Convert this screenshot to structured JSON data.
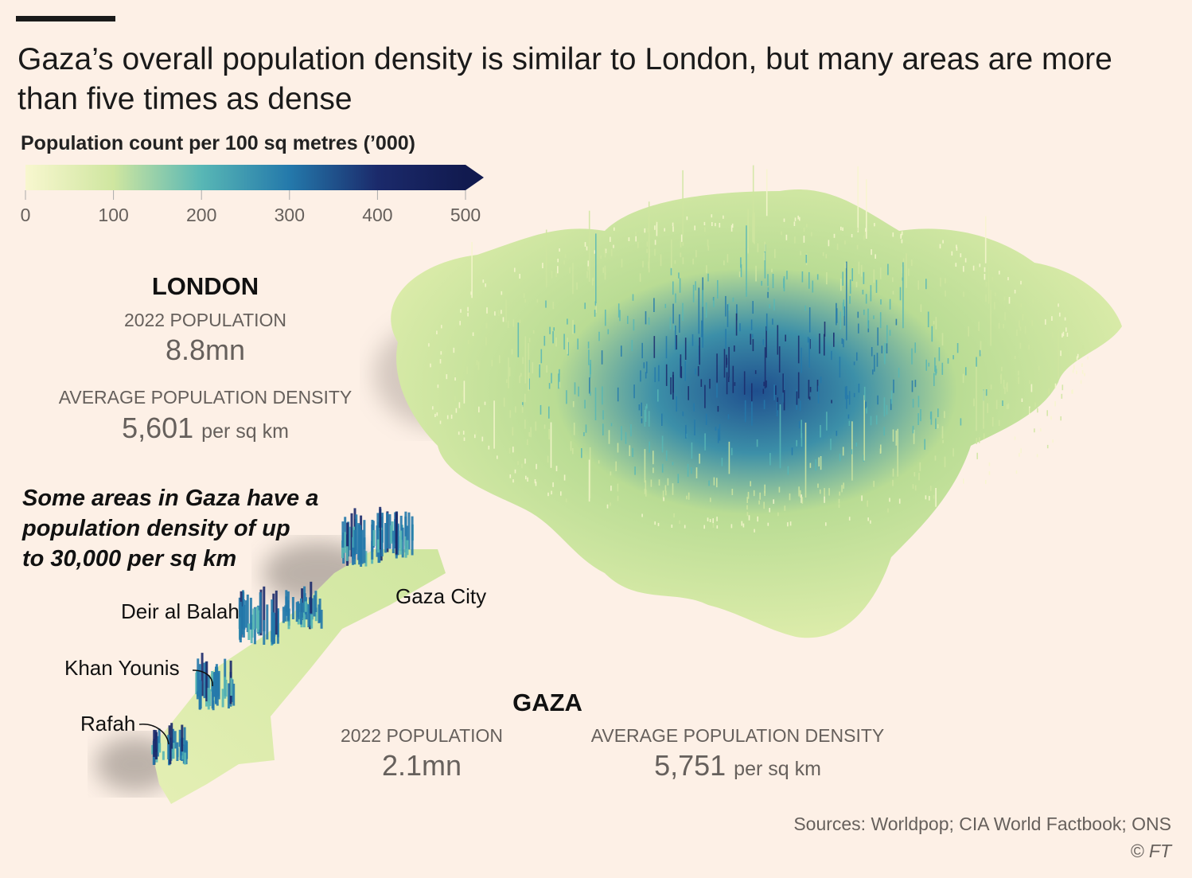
{
  "title": "Gaza’s overall population density is similar to London, but many areas are more than five times as dense",
  "legend": {
    "title": "Population count per 100 sq metres (’000)",
    "lim": [
      0,
      500
    ],
    "ticks": [
      0,
      100,
      200,
      300,
      400,
      500
    ],
    "colors": [
      "#f8f7cf",
      "#cfe6a0",
      "#58b7b5",
      "#2479ab",
      "#1b2a6b",
      "#111a4f"
    ]
  },
  "london": {
    "name": "LONDON",
    "population_label": "2022 POPULATION",
    "population": "8.8mn",
    "density_label": "AVERAGE POPULATION DENSITY",
    "density": "5,601",
    "density_unit": "per sq km"
  },
  "annotation": [
    "Some areas in Gaza have a",
    "population density of up",
    "to 30,000 per sq km"
  ],
  "gaza": {
    "name": "GAZA",
    "population_label": "2022 POPULATION",
    "population": "2.1mn",
    "density_label": "AVERAGE POPULATION DENSITY",
    "density": "5,751",
    "density_unit": "per sq km"
  },
  "places": [
    "Gaza City",
    "Deir al Balah",
    "Khan Younis",
    "Rafah"
  ],
  "source": "Sources: Worldpop; CIA World Factbook; ONS",
  "credit": "© FT"
}
